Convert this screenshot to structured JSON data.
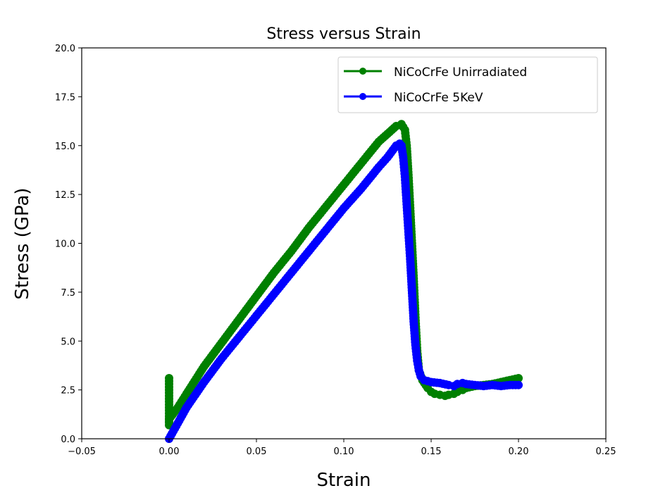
{
  "chart_data": {
    "type": "line",
    "title": "Stress versus Strain",
    "xlabel": "Strain",
    "ylabel": "Stress (GPa)",
    "xlim": [
      -0.05,
      0.25
    ],
    "ylim": [
      0,
      20
    ],
    "xticks": [
      -0.05,
      0.0,
      0.05,
      0.1,
      0.15,
      0.2,
      0.25
    ],
    "xtick_labels": [
      "−0.05",
      "0.00",
      "0.05",
      "0.10",
      "0.15",
      "0.20",
      "0.25"
    ],
    "yticks": [
      0,
      2.5,
      5,
      7.5,
      10,
      12.5,
      15,
      17.5,
      20
    ],
    "ytick_labels": [
      "0.0",
      "2.5",
      "5.0",
      "7.5",
      "10.0",
      "12.5",
      "15.0",
      "17.5",
      "20.0"
    ],
    "grid": false,
    "legend_position": "top-right",
    "series": [
      {
        "name": "NiCoCrFe Unirradiated",
        "color": "#008000",
        "x": [
          0.0,
          0.0,
          0.0,
          0.005,
          0.01,
          0.02,
          0.03,
          0.04,
          0.05,
          0.06,
          0.07,
          0.08,
          0.09,
          0.1,
          0.11,
          0.12,
          0.125,
          0.13,
          0.133,
          0.135,
          0.136,
          0.137,
          0.138,
          0.139,
          0.14,
          0.141,
          0.142,
          0.143,
          0.145,
          0.148,
          0.15,
          0.152,
          0.155,
          0.158,
          0.16,
          0.163,
          0.165,
          0.168,
          0.17,
          0.175,
          0.18,
          0.185,
          0.19,
          0.195,
          0.2
        ],
        "y": [
          3.1,
          0.7,
          1.0,
          1.6,
          2.3,
          3.7,
          4.9,
          6.1,
          7.3,
          8.5,
          9.6,
          10.8,
          11.9,
          13.0,
          14.1,
          15.2,
          15.6,
          16.0,
          16.1,
          15.8,
          15.0,
          13.5,
          11.8,
          10.0,
          8.2,
          6.2,
          4.5,
          3.5,
          3.0,
          2.6,
          2.4,
          2.3,
          2.25,
          2.2,
          2.25,
          2.3,
          2.4,
          2.5,
          2.6,
          2.7,
          2.75,
          2.8,
          2.9,
          3.0,
          3.1
        ]
      },
      {
        "name": "NiCoCrFe 5KeV",
        "color": "#0000ff",
        "x": [
          0.0,
          0.005,
          0.01,
          0.02,
          0.03,
          0.04,
          0.05,
          0.06,
          0.07,
          0.08,
          0.09,
          0.1,
          0.11,
          0.12,
          0.125,
          0.13,
          0.132,
          0.133,
          0.134,
          0.135,
          0.136,
          0.137,
          0.138,
          0.139,
          0.14,
          0.141,
          0.142,
          0.143,
          0.144,
          0.146,
          0.148,
          0.15,
          0.155,
          0.16,
          0.163,
          0.165,
          0.168,
          0.17,
          0.175,
          0.18,
          0.185,
          0.19,
          0.195,
          0.2
        ],
        "y": [
          0.0,
          0.8,
          1.6,
          2.9,
          4.1,
          5.2,
          6.3,
          7.4,
          8.5,
          9.6,
          10.7,
          11.8,
          12.8,
          13.9,
          14.4,
          15.0,
          15.1,
          15.0,
          14.4,
          13.4,
          12.0,
          10.6,
          9.2,
          7.6,
          6.0,
          4.8,
          4.0,
          3.5,
          3.2,
          3.0,
          2.95,
          2.9,
          2.85,
          2.75,
          2.7,
          2.8,
          2.85,
          2.8,
          2.75,
          2.7,
          2.75,
          2.7,
          2.75,
          2.75
        ]
      }
    ]
  }
}
